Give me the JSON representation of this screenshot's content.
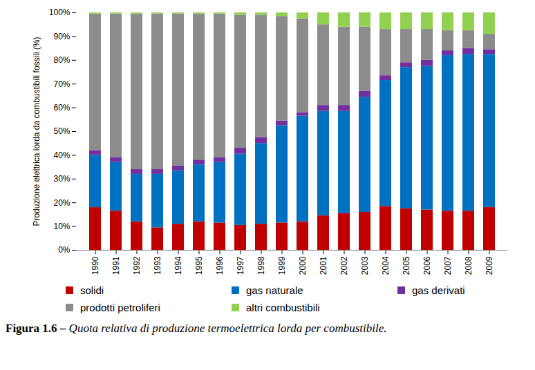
{
  "chart_data": {
    "type": "bar",
    "stacked": true,
    "caption": "Figura 1.6 – Quota relativa di produzione termoelettrica lorda per combustibile.",
    "y_label": "Produzione elettrica lorda da combustibili fossili (%)",
    "categories": [
      "1990",
      "1991",
      "1992",
      "1993",
      "1994",
      "1995",
      "1996",
      "1997",
      "1998",
      "1999",
      "2000",
      "2001",
      "2002",
      "2003",
      "2004",
      "2005",
      "2006",
      "2007",
      "2008",
      "2009"
    ],
    "series": [
      {
        "name": "solidi",
        "color": "#c00000",
        "values": [
          18,
          16.5,
          12,
          9.5,
          11,
          12,
          11.5,
          10.5,
          11,
          11.5,
          12,
          14.5,
          15.5,
          16,
          18.5,
          17.5,
          17,
          16.5,
          16.5,
          18
        ]
      },
      {
        "name": "gas naturale",
        "color": "#0070c0",
        "values": [
          22,
          20.5,
          20,
          22.5,
          22.5,
          24,
          25.5,
          30,
          34,
          41,
          44.5,
          44,
          43,
          48.5,
          53,
          59.5,
          60.5,
          65.5,
          66,
          64.5
        ]
      },
      {
        "name": "gas derivati",
        "color": "#7030a0",
        "values": [
          2,
          2,
          2,
          2,
          2,
          2,
          2,
          2.5,
          2.5,
          2,
          1.5,
          2.5,
          2.5,
          2.5,
          2,
          2,
          2.5,
          2,
          2.5,
          2
        ]
      },
      {
        "name": "prodotti petroliferi",
        "color": "#8c8c8c",
        "values": [
          57.5,
          60.5,
          65.5,
          65.5,
          64,
          61.5,
          60.5,
          56,
          51.5,
          44,
          39.5,
          34,
          33,
          27,
          19.5,
          14,
          13,
          8.5,
          7.5,
          6.5
        ]
      },
      {
        "name": "altri combustibili",
        "color": "#92d050",
        "values": [
          0.5,
          0.5,
          0.5,
          0.5,
          0.5,
          0.5,
          0.5,
          1,
          1,
          1.5,
          2.5,
          5,
          6,
          6,
          7,
          7,
          7,
          7.5,
          7.5,
          9
        ]
      }
    ],
    "ylim": [
      0,
      100
    ],
    "yticks": [
      {
        "value": 0,
        "label": "0%"
      },
      {
        "value": 10,
        "label": "10%"
      },
      {
        "value": 20,
        "label": "20%"
      },
      {
        "value": 30,
        "label": "30%"
      },
      {
        "value": 40,
        "label": "40%"
      },
      {
        "value": 50,
        "label": "50%"
      },
      {
        "value": 60,
        "label": "60%"
      },
      {
        "value": 70,
        "label": "70%"
      },
      {
        "value": 80,
        "label": "80%"
      },
      {
        "value": 90,
        "label": "90%"
      },
      {
        "value": 100,
        "label": "100%"
      }
    ],
    "grid": false,
    "legend": "bottom"
  }
}
